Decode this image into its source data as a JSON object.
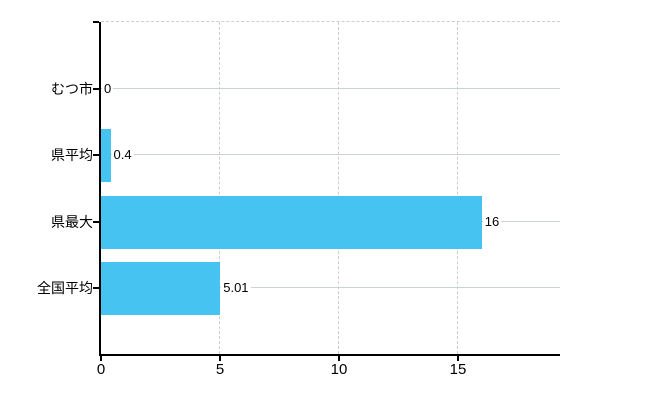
{
  "chart_data": {
    "type": "bar",
    "orientation": "horizontal",
    "title": "",
    "xlabel": "",
    "ylabel": "",
    "categories": [
      "むつ市",
      "県平均",
      "県最大",
      "全国平均"
    ],
    "values": [
      0,
      0.4,
      16,
      5.01
    ],
    "value_labels": [
      "0",
      "0.4",
      "16",
      "5.01"
    ],
    "x_ticks": [
      0,
      5,
      10,
      15
    ],
    "x_tick_labels": [
      "0",
      "5",
      "10",
      "15"
    ],
    "xlim": [
      0,
      19.3
    ],
    "grid": true,
    "legend": "none",
    "colors": {
      "bar": "#47c3f1",
      "horizontal_gridline": "#ccd5cc",
      "vertical_gridline": "#d2cbd0",
      "top_border": "#d0cdd0",
      "axis": "#000000",
      "text": "#000000",
      "background": "#ffffff"
    }
  }
}
